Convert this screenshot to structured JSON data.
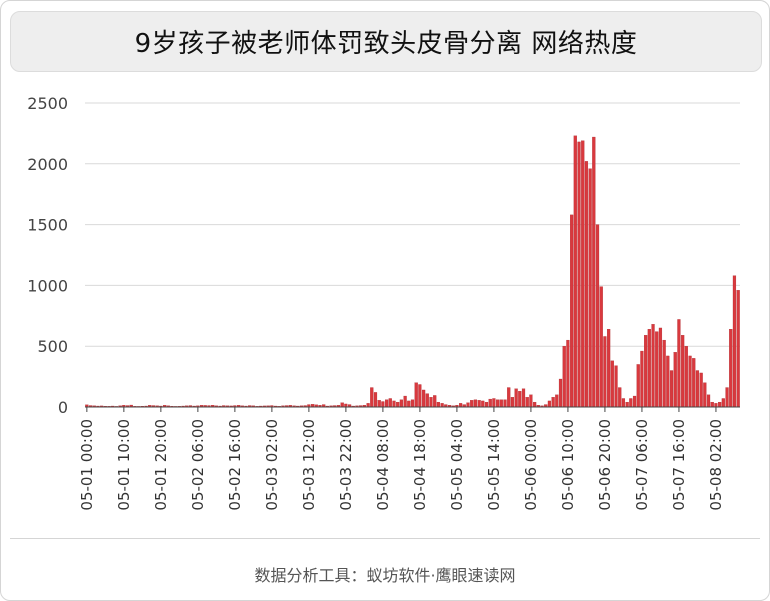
{
  "title": "9岁孩子被老师体罚致头皮骨分离 网络热度",
  "footer": "数据分析工具：蚁坊软件·鹰眼速读网",
  "colors": {
    "bar": "#d9393e",
    "bar_stroke": "#a82328",
    "grid": "#d9d9d9",
    "axis": "#444444"
  },
  "chart_data": {
    "type": "bar",
    "title": "9岁孩子被老师体罚致头皮骨分离 网络热度",
    "xlabel": "",
    "ylabel": "",
    "ylim": [
      0,
      2500
    ],
    "yticks": [
      0,
      500,
      1000,
      1500,
      2000,
      2500
    ],
    "grid": true,
    "legend": "none",
    "tick_labels": [
      "05-01 00:00",
      "05-01 10:00",
      "05-01 20:00",
      "05-02 06:00",
      "05-02 16:00",
      "05-03 02:00",
      "05-03 12:00",
      "05-03 22:00",
      "05-04 08:00",
      "05-04 18:00",
      "05-05 04:00",
      "05-05 14:00",
      "05-06 00:00",
      "05-06 10:00",
      "05-06 20:00",
      "05-07 06:00",
      "05-07 16:00",
      "05-08 02:00"
    ],
    "tick_every": 10,
    "start_label": "05-01 00:00",
    "interval_hours": 1,
    "values": [
      18,
      12,
      10,
      8,
      9,
      7,
      6,
      8,
      5,
      10,
      15,
      12,
      16,
      6,
      5,
      7,
      8,
      14,
      12,
      10,
      8,
      14,
      10,
      7,
      5,
      6,
      8,
      10,
      12,
      8,
      10,
      14,
      13,
      12,
      15,
      10,
      8,
      12,
      10,
      9,
      12,
      14,
      10,
      8,
      12,
      10,
      6,
      8,
      9,
      10,
      12,
      8,
      6,
      10,
      12,
      14,
      10,
      8,
      10,
      12,
      20,
      22,
      18,
      15,
      20,
      8,
      10,
      12,
      14,
      35,
      25,
      20,
      8,
      10,
      12,
      15,
      30,
      160,
      120,
      55,
      45,
      60,
      70,
      50,
      40,
      60,
      90,
      50,
      60,
      200,
      185,
      140,
      110,
      80,
      95,
      40,
      30,
      20,
      15,
      10,
      15,
      30,
      20,
      35,
      55,
      60,
      55,
      50,
      40,
      65,
      70,
      60,
      60,
      60,
      160,
      80,
      150,
      130,
      150,
      80,
      100,
      40,
      15,
      10,
      20,
      50,
      80,
      100,
      230,
      500,
      550,
      1580,
      2230,
      2180,
      2190,
      2020,
      1960,
      2220,
      1500,
      990,
      580,
      640,
      380,
      340,
      160,
      70,
      40,
      70,
      90,
      350,
      460,
      590,
      640,
      680,
      620,
      650,
      550,
      420,
      300,
      450,
      720,
      590,
      500,
      420,
      400,
      300,
      280,
      200,
      100,
      40,
      30,
      40,
      70,
      160,
      640,
      1080,
      960
    ]
  }
}
